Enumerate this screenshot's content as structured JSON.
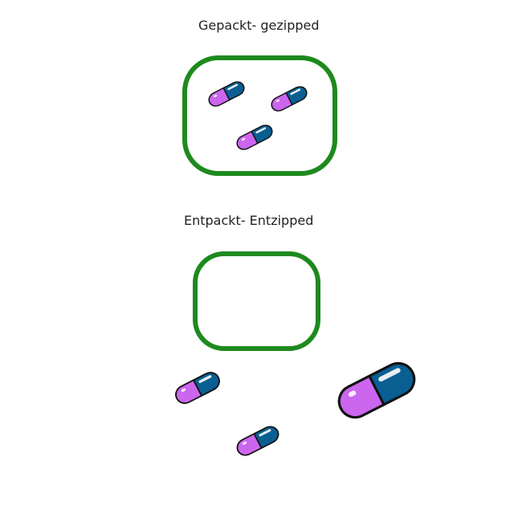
{
  "packed": {
    "label": "Gepackt- gezipped",
    "capsule_count": 3
  },
  "unpacked": {
    "label": "Entpackt- Entzipped",
    "capsule_count": 3,
    "container_empty": true
  },
  "colors": {
    "container_stroke": "#1e8a1e",
    "capsule_pink": "#cc66ee",
    "capsule_blue": "#0a5f92",
    "capsule_outline": "#111111"
  },
  "icons": {
    "container": "rounded-rectangle",
    "capsule": "pill-capsule-icon"
  }
}
